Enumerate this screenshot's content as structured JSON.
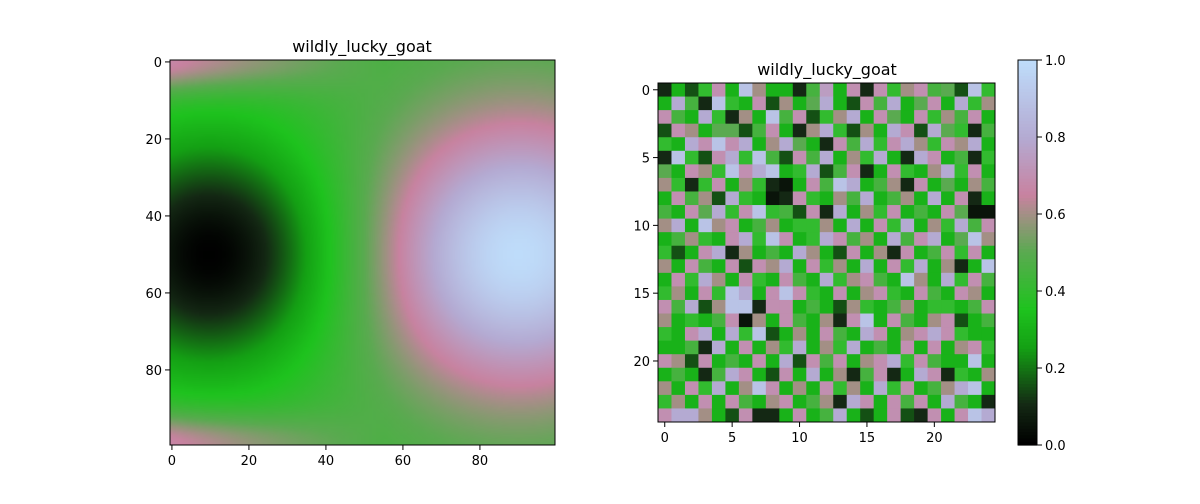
{
  "figure": {
    "background": "#ffffff"
  },
  "chart_data": [
    {
      "type": "heatmap",
      "title": "wildly_lucky_goat",
      "xlabel": "",
      "ylabel": "",
      "shape": [
        100,
        100
      ],
      "xlim": [
        -0.5,
        99.5
      ],
      "ylim": [
        99.5,
        -0.5
      ],
      "x_ticks": [
        0,
        20,
        40,
        60,
        80
      ],
      "y_ticks": [
        0,
        20,
        40,
        60,
        80
      ],
      "colormap": "cubehelix-like (black - green - pink - light blue)",
      "vmin": 0.0,
      "vmax": 1.0,
      "description_of_field": "smooth field: dark minimum near (x=10, y=50), bright maximum near (x=90, y=50), pink bands at top and bottom edges",
      "extrema": {
        "min": {
          "x": 10,
          "y": 50,
          "value": 0.0
        },
        "max": {
          "x": 90,
          "y": 50,
          "value": 1.0
        }
      }
    },
    {
      "type": "heatmap",
      "title": "wildly_lucky_goat",
      "xlabel": "",
      "ylabel": "",
      "shape": [
        25,
        25
      ],
      "xlim": [
        -0.5,
        24.5
      ],
      "ylim": [
        24.5,
        -0.5
      ],
      "x_ticks": [
        0,
        5,
        10,
        15,
        20
      ],
      "y_ticks": [
        0,
        5,
        10,
        15,
        20
      ],
      "colormap": "cubehelix-like (black - green - pink - light blue)",
      "vmin": 0.0,
      "vmax": 1.0,
      "values": [
        [
          0.1,
          0.3,
          0.15,
          0.4,
          0.7,
          0.3,
          0.9,
          0.6,
          0.3,
          0.3,
          0.1,
          0.45,
          0.75,
          0.3,
          0.7,
          0.1,
          0.7,
          0.4,
          0.6,
          0.7,
          0.45,
          0.5,
          0.15,
          0.9,
          0.4
        ],
        [
          0.3,
          0.8,
          0.45,
          0.1,
          0.9,
          0.4,
          0.3,
          0.7,
          0.15,
          0.6,
          0.3,
          0.5,
          0.8,
          0.3,
          0.15,
          0.7,
          0.45,
          0.8,
          0.3,
          0.5,
          0.7,
          0.3,
          0.8,
          0.4,
          0.6
        ],
        [
          0.7,
          0.45,
          0.3,
          0.8,
          0.4,
          0.1,
          0.6,
          0.3,
          0.9,
          0.45,
          0.7,
          0.15,
          0.4,
          0.6,
          0.8,
          0.3,
          0.7,
          0.5,
          0.3,
          0.7,
          0.4,
          0.6,
          0.45,
          0.7,
          0.3
        ],
        [
          0.15,
          0.7,
          0.6,
          0.3,
          0.5,
          0.5,
          0.15,
          0.45,
          0.7,
          0.3,
          0.1,
          0.6,
          0.8,
          0.4,
          0.15,
          0.6,
          0.3,
          0.8,
          0.7,
          0.15,
          0.8,
          0.5,
          0.4,
          0.1,
          0.45
        ],
        [
          0.4,
          0.3,
          0.8,
          0.7,
          0.9,
          0.7,
          0.8,
          0.3,
          0.6,
          0.8,
          0.5,
          0.3,
          0.1,
          0.7,
          0.45,
          0.8,
          0.4,
          0.7,
          0.8,
          0.6,
          0.4,
          0.7,
          0.6,
          0.8,
          0.3
        ],
        [
          0.1,
          0.9,
          0.4,
          0.15,
          0.7,
          0.8,
          0.4,
          0.9,
          0.45,
          0.15,
          0.7,
          0.45,
          0.8,
          0.3,
          0.6,
          0.4,
          0.8,
          0.3,
          0.1,
          0.8,
          0.7,
          0.3,
          0.45,
          0.1,
          0.4
        ],
        [
          0.5,
          0.3,
          0.7,
          0.6,
          0.4,
          0.9,
          0.7,
          0.8,
          0.9,
          0.3,
          0.4,
          0.8,
          0.15,
          0.45,
          0.7,
          0.1,
          0.3,
          0.7,
          0.4,
          0.3,
          0.6,
          0.8,
          0.4,
          0.7,
          0.3
        ],
        [
          0.6,
          0.4,
          0.1,
          0.4,
          0.7,
          0.3,
          0.6,
          0.4,
          0.1,
          0.05,
          0.3,
          0.7,
          0.45,
          0.9,
          0.8,
          0.3,
          0.45,
          0.6,
          0.1,
          0.7,
          0.3,
          0.5,
          0.3,
          0.6,
          0.45
        ],
        [
          0.3,
          0.7,
          0.45,
          0.6,
          0.15,
          0.8,
          0.4,
          0.3,
          0.05,
          0.1,
          0.7,
          0.4,
          0.3,
          0.6,
          0.45,
          0.8,
          0.3,
          0.45,
          0.6,
          0.3,
          0.8,
          0.3,
          0.7,
          0.1,
          0.3
        ],
        [
          0.45,
          0.3,
          0.7,
          0.5,
          0.8,
          0.4,
          0.7,
          0.9,
          0.4,
          0.45,
          0.15,
          0.7,
          0.1,
          0.8,
          0.3,
          0.6,
          0.4,
          0.7,
          0.3,
          0.45,
          0.3,
          0.7,
          0.5,
          0.05,
          0.05
        ],
        [
          0.6,
          0.8,
          0.3,
          0.9,
          0.6,
          0.7,
          0.3,
          0.45,
          0.6,
          0.3,
          0.4,
          0.4,
          0.6,
          0.3,
          0.8,
          0.3,
          0.7,
          0.4,
          0.8,
          0.3,
          0.6,
          0.4,
          0.8,
          0.45,
          0.7
        ],
        [
          0.3,
          0.45,
          0.6,
          0.4,
          0.3,
          0.7,
          0.8,
          0.4,
          0.9,
          0.7,
          0.3,
          0.4,
          0.8,
          0.7,
          0.45,
          0.6,
          0.3,
          0.8,
          0.45,
          0.7,
          0.8,
          0.3,
          0.5,
          0.9,
          0.6
        ],
        [
          0.4,
          0.15,
          0.3,
          0.7,
          0.8,
          0.1,
          0.6,
          0.3,
          0.45,
          0.3,
          0.8,
          0.6,
          0.3,
          0.15,
          0.7,
          0.3,
          0.6,
          0.1,
          0.7,
          0.3,
          0.45,
          0.7,
          0.4,
          0.7,
          0.3
        ],
        [
          0.6,
          0.3,
          0.7,
          0.45,
          0.3,
          0.7,
          0.15,
          0.7,
          0.6,
          0.8,
          0.3,
          0.7,
          0.4,
          0.6,
          0.3,
          0.8,
          0.3,
          0.7,
          0.4,
          0.8,
          0.3,
          0.6,
          0.1,
          0.3,
          0.9
        ],
        [
          0.3,
          0.7,
          0.4,
          0.8,
          0.6,
          0.3,
          0.7,
          0.4,
          0.3,
          0.7,
          0.45,
          0.3,
          0.8,
          0.4,
          0.6,
          0.7,
          0.45,
          0.3,
          0.9,
          0.6,
          0.3,
          0.8,
          0.4,
          0.7,
          0.45
        ],
        [
          0.4,
          0.6,
          0.3,
          0.7,
          0.4,
          0.9,
          0.8,
          0.3,
          0.7,
          0.9,
          0.7,
          0.4,
          0.3,
          0.7,
          0.3,
          0.6,
          0.7,
          0.4,
          0.3,
          0.7,
          0.45,
          0.3,
          0.7,
          0.6,
          0.3
        ],
        [
          0.7,
          0.45,
          0.8,
          0.15,
          0.6,
          0.9,
          0.9,
          0.1,
          0.7,
          0.7,
          0.3,
          0.45,
          0.3,
          0.15,
          0.6,
          0.4,
          0.3,
          0.45,
          0.6,
          0.3,
          0.4,
          0.4,
          0.3,
          0.45,
          0.7
        ],
        [
          0.6,
          0.3,
          0.4,
          0.3,
          0.45,
          0.7,
          0.05,
          0.6,
          0.3,
          0.7,
          0.45,
          0.3,
          0.6,
          0.1,
          0.7,
          0.9,
          0.3,
          0.7,
          0.45,
          0.3,
          0.6,
          0.7,
          0.15,
          0.3,
          0.45
        ],
        [
          0.4,
          0.3,
          0.7,
          0.8,
          0.3,
          0.8,
          0.4,
          0.9,
          0.15,
          0.3,
          0.6,
          0.3,
          0.7,
          0.45,
          0.3,
          0.8,
          0.7,
          0.3,
          0.6,
          0.7,
          0.8,
          0.7,
          0.4,
          0.3,
          0.3
        ],
        [
          0.3,
          0.3,
          0.45,
          0.1,
          0.8,
          0.3,
          0.7,
          0.3,
          0.6,
          0.4,
          0.8,
          0.3,
          0.6,
          0.4,
          0.8,
          0.3,
          0.45,
          0.3,
          0.7,
          0.3,
          0.7,
          0.3,
          0.6,
          0.7,
          0.4
        ],
        [
          0.7,
          0.6,
          0.15,
          0.7,
          0.3,
          0.45,
          0.3,
          0.7,
          0.3,
          0.8,
          0.15,
          0.7,
          0.45,
          0.7,
          0.3,
          0.6,
          0.7,
          0.8,
          0.4,
          0.7,
          0.45,
          0.3,
          0.3,
          0.9,
          0.3
        ],
        [
          0.3,
          0.45,
          0.3,
          0.1,
          0.45,
          0.8,
          0.7,
          0.3,
          0.15,
          0.7,
          0.3,
          0.8,
          0.3,
          0.6,
          0.1,
          0.45,
          0.7,
          0.1,
          0.3,
          0.8,
          0.7,
          0.1,
          0.4,
          0.3,
          0.6
        ],
        [
          0.6,
          0.3,
          0.7,
          0.4,
          0.8,
          0.3,
          0.6,
          0.9,
          0.7,
          0.3,
          0.6,
          0.3,
          0.7,
          0.4,
          0.6,
          0.3,
          0.8,
          0.4,
          0.7,
          0.3,
          0.45,
          0.6,
          0.8,
          0.9,
          0.3
        ],
        [
          0.4,
          0.6,
          0.3,
          0.7,
          0.3,
          0.7,
          0.45,
          0.3,
          0.6,
          0.7,
          0.3,
          0.45,
          0.6,
          0.1,
          0.8,
          0.7,
          0.3,
          0.7,
          0.45,
          0.7,
          0.3,
          0.8,
          0.45,
          0.3,
          0.1
        ],
        [
          0.7,
          0.8,
          0.8,
          0.6,
          0.3,
          0.15,
          0.7,
          0.1,
          0.1,
          0.3,
          0.7,
          0.3,
          0.45,
          0.8,
          0.3,
          0.15,
          0.3,
          0.7,
          0.15,
          0.1,
          0.7,
          0.3,
          0.7,
          0.9,
          0.8
        ]
      ]
    }
  ],
  "colorbar": {
    "ticks": [
      "0.0",
      "0.2",
      "0.4",
      "0.6",
      "0.8",
      "1.0"
    ],
    "tick_values": [
      0.0,
      0.2,
      0.4,
      0.6,
      0.8,
      1.0
    ]
  }
}
